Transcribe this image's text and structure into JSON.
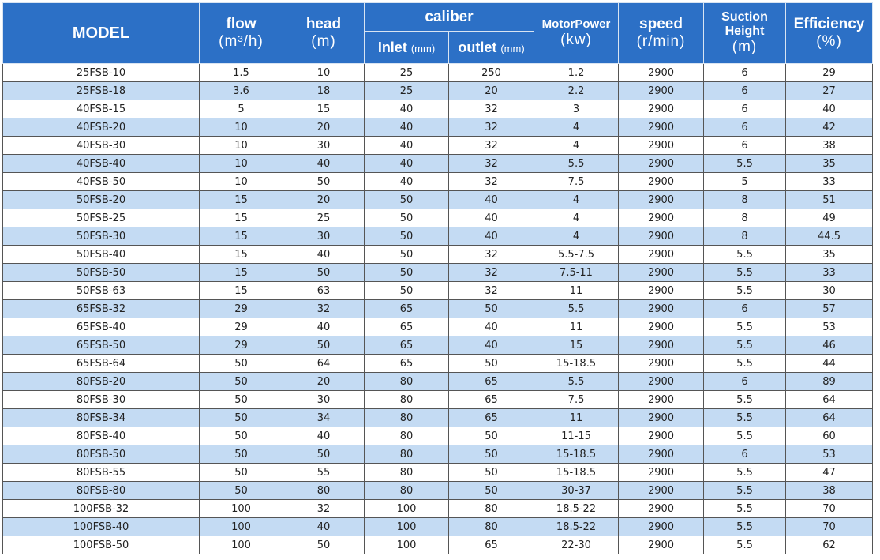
{
  "header": {
    "model": "MODEL",
    "flow": {
      "name": "flow",
      "unit": "(m³/h)"
    },
    "head": {
      "name": "head",
      "unit": "(m)"
    },
    "caliber": {
      "name": "caliber",
      "inlet": {
        "name": "Inlet",
        "unit": "(mm)"
      },
      "outlet": {
        "name": "outlet",
        "unit": "(mm)"
      }
    },
    "motor_power": {
      "name": "MotorPower",
      "unit": "(kw)"
    },
    "speed": {
      "name": "speed",
      "unit": "(r/min)"
    },
    "suction_height": {
      "name": "Suction Height",
      "unit": "(m)"
    },
    "efficiency": {
      "name": "Efficiency",
      "unit": "(%)"
    }
  },
  "table": {
    "rows": [
      [
        "25FSB-10",
        "1.5",
        "10",
        "25",
        "250",
        "1.2",
        "2900",
        "6",
        "29"
      ],
      [
        "25FSB-18",
        "3.6",
        "18",
        "25",
        "20",
        "2.2",
        "2900",
        "6",
        "27"
      ],
      [
        "40FSB-15",
        "5",
        "15",
        "40",
        "32",
        "3",
        "2900",
        "6",
        "40"
      ],
      [
        "40FSB-20",
        "10",
        "20",
        "40",
        "32",
        "4",
        "2900",
        "6",
        "42"
      ],
      [
        "40FSB-30",
        "10",
        "30",
        "40",
        "32",
        "4",
        "2900",
        "6",
        "38"
      ],
      [
        "40FSB-40",
        "10",
        "40",
        "40",
        "32",
        "5.5",
        "2900",
        "5.5",
        "35"
      ],
      [
        "40FSB-50",
        "10",
        "50",
        "40",
        "32",
        "7.5",
        "2900",
        "5",
        "33"
      ],
      [
        "50FSB-20",
        "15",
        "20",
        "50",
        "40",
        "4",
        "2900",
        "8",
        "51"
      ],
      [
        "50FSB-25",
        "15",
        "25",
        "50",
        "40",
        "4",
        "2900",
        "8",
        "49"
      ],
      [
        "50FSB-30",
        "15",
        "30",
        "50",
        "40",
        "4",
        "2900",
        "8",
        "44.5"
      ],
      [
        "50FSB-40",
        "15",
        "40",
        "50",
        "32",
        "5.5-7.5",
        "2900",
        "5.5",
        "35"
      ],
      [
        "50FSB-50",
        "15",
        "50",
        "50",
        "32",
        "7.5-11",
        "2900",
        "5.5",
        "33"
      ],
      [
        "50FSB-63",
        "15",
        "63",
        "50",
        "32",
        "11",
        "2900",
        "5.5",
        "30"
      ],
      [
        "65FSB-32",
        "29",
        "32",
        "65",
        "50",
        "5.5",
        "2900",
        "6",
        "57"
      ],
      [
        "65FSB-40",
        "29",
        "40",
        "65",
        "40",
        "11",
        "2900",
        "5.5",
        "53"
      ],
      [
        "65FSB-50",
        "29",
        "50",
        "65",
        "40",
        "15",
        "2900",
        "5.5",
        "46"
      ],
      [
        "65FSB-64",
        "50",
        "64",
        "65",
        "50",
        "15-18.5",
        "2900",
        "5.5",
        "44"
      ],
      [
        "80FSB-20",
        "50",
        "20",
        "80",
        "65",
        "5.5",
        "2900",
        "6",
        "89"
      ],
      [
        "80FSB-30",
        "50",
        "30",
        "80",
        "65",
        "7.5",
        "2900",
        "5.5",
        "64"
      ],
      [
        "80FSB-34",
        "50",
        "34",
        "80",
        "65",
        "11",
        "2900",
        "5.5",
        "64"
      ],
      [
        "80FSB-40",
        "50",
        "40",
        "80",
        "50",
        "11-15",
        "2900",
        "5.5",
        "60"
      ],
      [
        "80FSB-50",
        "50",
        "50",
        "80",
        "50",
        "15-18.5",
        "2900",
        "6",
        "53"
      ],
      [
        "80FSB-55",
        "50",
        "55",
        "80",
        "50",
        "15-18.5",
        "2900",
        "5.5",
        "47"
      ],
      [
        "80FSB-80",
        "50",
        "80",
        "80",
        "50",
        "30-37",
        "2900",
        "5.5",
        "38"
      ],
      [
        "100FSB-32",
        "100",
        "32",
        "100",
        "80",
        "18.5-22",
        "2900",
        "5.5",
        "70"
      ],
      [
        "100FSB-40",
        "100",
        "40",
        "100",
        "80",
        "18.5-22",
        "2900",
        "5.5",
        "70"
      ],
      [
        "100FSB-50",
        "100",
        "50",
        "100",
        "65",
        "22-30",
        "2900",
        "5.5",
        "62"
      ]
    ]
  }
}
